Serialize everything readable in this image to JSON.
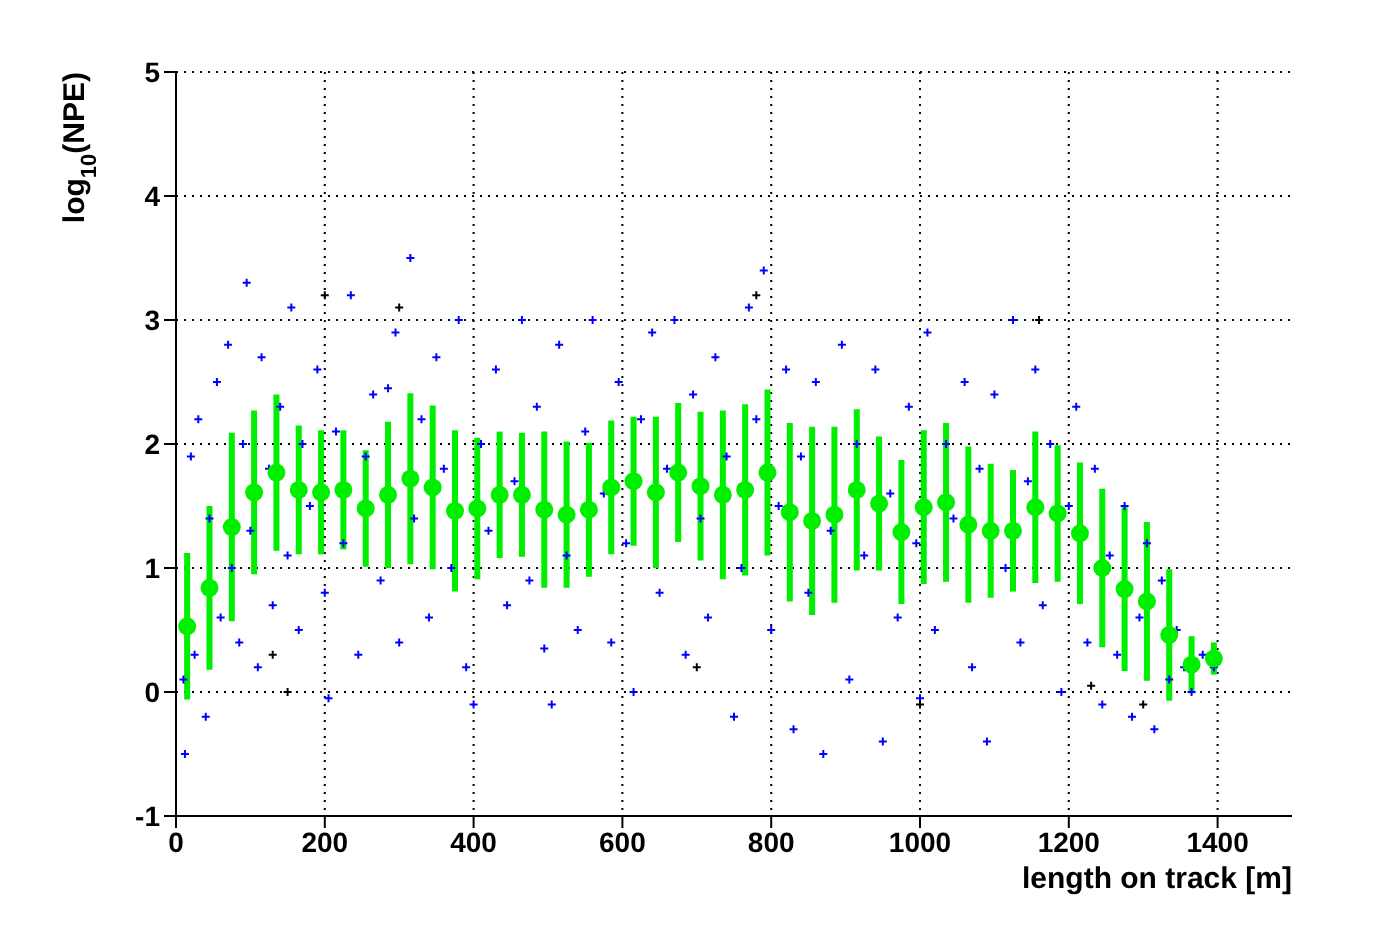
{
  "chart_data": {
    "type": "scatter",
    "xlabel": "length on track [m]",
    "ylabel": "log$_{10}$(NPE)",
    "xlim": [
      0,
      1500
    ],
    "xticks": [
      0,
      200,
      400,
      600,
      800,
      1000,
      1200,
      1400
    ],
    "ylim": [
      -1,
      5
    ],
    "yticks": [
      -1,
      0,
      1,
      2,
      3,
      4,
      5
    ],
    "grid": true,
    "legend": false,
    "series": [
      {
        "color": "#0000ff",
        "marker": "cross",
        "x": [
          10,
          12,
          20,
          25,
          30,
          40,
          45,
          55,
          60,
          70,
          75,
          85,
          90,
          95,
          100,
          110,
          115,
          125,
          130,
          140,
          150,
          155,
          165,
          170,
          180,
          190,
          200,
          205,
          215,
          225,
          235,
          245,
          255,
          265,
          275,
          285,
          295,
          300,
          315,
          320,
          330,
          340,
          350,
          360,
          370,
          380,
          390,
          400,
          410,
          420,
          430,
          445,
          455,
          465,
          475,
          485,
          495,
          505,
          515,
          525,
          540,
          550,
          560,
          575,
          585,
          595,
          605,
          615,
          625,
          640,
          650,
          660,
          670,
          685,
          695,
          705,
          715,
          725,
          740,
          750,
          760,
          770,
          780,
          790,
          800,
          810,
          820,
          830,
          840,
          850,
          860,
          870,
          880,
          895,
          905,
          915,
          925,
          940,
          950,
          960,
          970,
          985,
          995,
          1000,
          1010,
          1020,
          1035,
          1045,
          1060,
          1070,
          1080,
          1090,
          1100,
          1115,
          1125,
          1135,
          1145,
          1155,
          1165,
          1175,
          1190,
          1200,
          1210,
          1225,
          1235,
          1245,
          1255,
          1265,
          1275,
          1285,
          1295,
          1305,
          1315,
          1325,
          1335,
          1345,
          1355,
          1365,
          1380,
          1395
        ],
        "values": [
          0.1,
          -0.5,
          1.9,
          0.3,
          2.2,
          -0.2,
          1.4,
          2.5,
          0.6,
          2.8,
          1.0,
          0.4,
          2.0,
          3.3,
          1.3,
          0.2,
          2.7,
          1.8,
          0.7,
          2.3,
          1.1,
          3.1,
          0.5,
          2.0,
          1.5,
          2.6,
          0.8,
          -0.05,
          2.1,
          1.2,
          3.2,
          0.3,
          1.9,
          2.4,
          0.9,
          2.45,
          2.9,
          0.4,
          3.5,
          1.4,
          2.2,
          0.6,
          2.7,
          1.8,
          1.0,
          3.0,
          0.2,
          -0.1,
          2.0,
          1.3,
          2.6,
          0.7,
          1.7,
          3.0,
          0.9,
          2.3,
          0.35,
          -0.1,
          2.8,
          1.1,
          0.5,
          2.1,
          3.0,
          1.6,
          0.4,
          2.5,
          1.2,
          0.0,
          2.2,
          2.9,
          0.8,
          1.8,
          3.0,
          0.3,
          2.4,
          1.4,
          0.6,
          2.7,
          1.9,
          -0.2,
          1.0,
          3.1,
          2.2,
          3.4,
          0.5,
          1.5,
          2.6,
          -0.3,
          1.9,
          0.8,
          2.5,
          -0.5,
          1.3,
          2.8,
          0.1,
          2.0,
          1.1,
          2.6,
          -0.4,
          1.6,
          0.6,
          2.3,
          1.2,
          -0.05,
          2.9,
          0.5,
          2.0,
          1.4,
          2.5,
          0.2,
          1.8,
          -0.4,
          2.4,
          1.0,
          3.0,
          0.4,
          1.7,
          2.6,
          0.7,
          2.0,
          0.0,
          1.5,
          2.3,
          0.4,
          1.8,
          -0.1,
          1.1,
          0.3,
          1.5,
          -0.2,
          0.6,
          1.2,
          -0.3,
          0.9,
          0.1,
          0.5,
          0.2,
          0.0,
          0.3,
          0.2
        ]
      },
      {
        "color": "#000000",
        "marker": "cross",
        "x": [
          130,
          150,
          200,
          300,
          700,
          780,
          1000,
          1160,
          1230,
          1300
        ],
        "values": [
          0.3,
          0.0,
          3.2,
          3.1,
          0.2,
          3.2,
          -0.1,
          3.0,
          0.05,
          -0.1
        ]
      },
      {
        "color": "#00ee00",
        "marker": "circle",
        "x": [
          15,
          45,
          75,
          105,
          135,
          165,
          195,
          225,
          255,
          285,
          315,
          345,
          375,
          405,
          435,
          465,
          495,
          525,
          555,
          585,
          615,
          645,
          675,
          705,
          735,
          765,
          795,
          825,
          855,
          885,
          915,
          945,
          975,
          1005,
          1035,
          1065,
          1095,
          1125,
          1155,
          1185,
          1215,
          1245,
          1275,
          1305,
          1335,
          1365,
          1395
        ],
        "values": [
          0.53,
          0.84,
          1.33,
          1.61,
          1.77,
          1.63,
          1.61,
          1.63,
          1.48,
          1.59,
          1.72,
          1.65,
          1.46,
          1.48,
          1.59,
          1.59,
          1.47,
          1.43,
          1.47,
          1.65,
          1.7,
          1.61,
          1.77,
          1.66,
          1.59,
          1.63,
          1.77,
          1.45,
          1.38,
          1.43,
          1.63,
          1.52,
          1.29,
          1.49,
          1.53,
          1.35,
          1.3,
          1.3,
          1.49,
          1.44,
          1.28,
          1.0,
          0.83,
          0.73,
          0.46,
          0.22,
          0.27
        ],
        "errors": [
          0.59,
          0.66,
          0.76,
          0.66,
          0.63,
          0.52,
          0.5,
          0.48,
          0.47,
          0.59,
          0.69,
          0.66,
          0.65,
          0.57,
          0.51,
          0.5,
          0.63,
          0.59,
          0.54,
          0.54,
          0.52,
          0.61,
          0.56,
          0.6,
          0.68,
          0.69,
          0.67,
          0.72,
          0.76,
          0.71,
          0.65,
          0.54,
          0.58,
          0.62,
          0.64,
          0.63,
          0.54,
          0.49,
          0.61,
          0.55,
          0.57,
          0.64,
          0.66,
          0.64,
          0.53,
          0.23,
          0.13
        ]
      }
    ]
  }
}
